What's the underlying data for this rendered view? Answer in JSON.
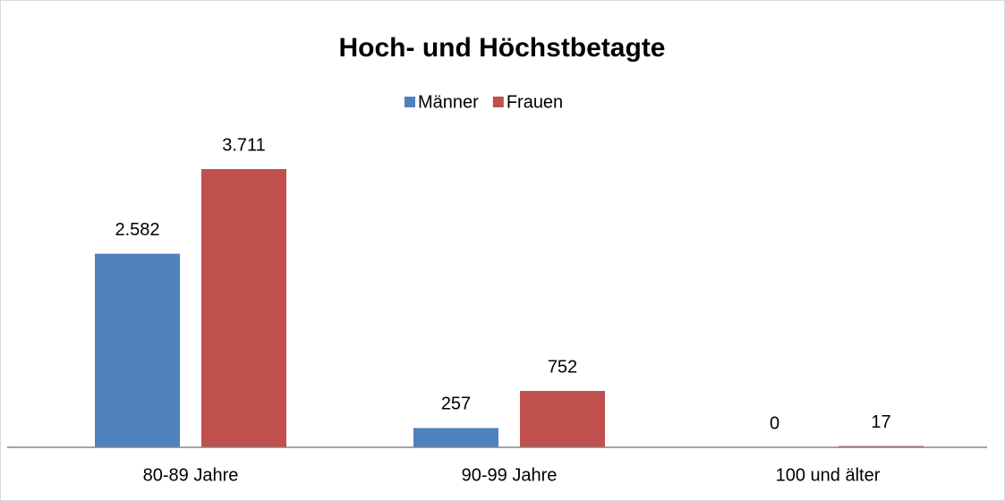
{
  "chart_data": {
    "type": "bar",
    "title": "Hoch- und Höchstbetagte",
    "categories": [
      "80-89 Jahre",
      "90-99 Jahre",
      "100 und älter"
    ],
    "series": [
      {
        "name": "Männer",
        "color": "#4f81bd",
        "values": [
          2582,
          257,
          0
        ],
        "value_labels": [
          "2.582",
          "257",
          "0"
        ]
      },
      {
        "name": "Frauen",
        "color": "#c0504d",
        "values": [
          3711,
          752,
          17
        ],
        "value_labels": [
          "3.711",
          "752",
          "17"
        ]
      }
    ],
    "legend": "top"
  }
}
